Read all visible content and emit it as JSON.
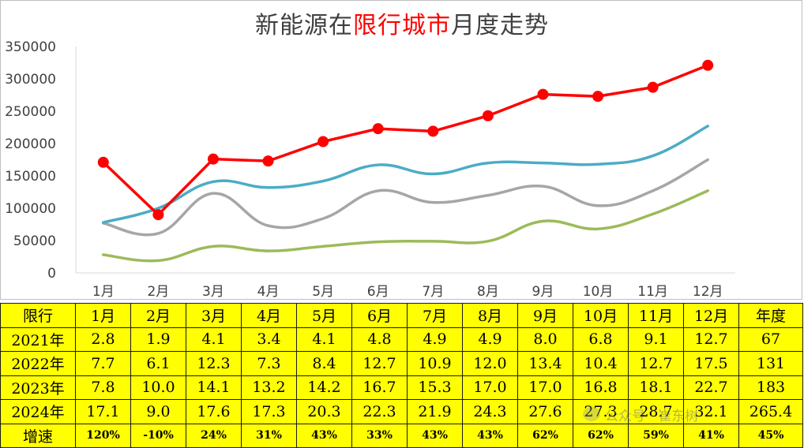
{
  "title": {
    "prefix": "新能源在",
    "highlight": "限行城市",
    "suffix": "月度走势"
  },
  "colors": {
    "series_2021": "#9bbb59",
    "series_2022": "#a6a6a6",
    "series_2023": "#4bacc6",
    "series_2024": "#ff0000",
    "table_bg": "#ffff00"
  },
  "chart_data": {
    "type": "line",
    "categories": [
      "1月",
      "2月",
      "3月",
      "4月",
      "5月",
      "6月",
      "7月",
      "8月",
      "9月",
      "10月",
      "11月",
      "12月"
    ],
    "ylim": [
      0,
      350000
    ],
    "yticks": [
      "0",
      "50000",
      "100000",
      "150000",
      "200000",
      "250000",
      "300000",
      "350000"
    ],
    "grid": false,
    "series": [
      {
        "name": "2021年",
        "color": "#9bbb59",
        "smooth": true,
        "markers": false,
        "values": [
          28000,
          19000,
          41000,
          34000,
          41000,
          48000,
          49000,
          49000,
          80000,
          68000,
          91000,
          127000
        ]
      },
      {
        "name": "2022年",
        "color": "#a6a6a6",
        "smooth": true,
        "markers": false,
        "values": [
          77000,
          61000,
          123000,
          73000,
          84000,
          127000,
          109000,
          120000,
          134000,
          104000,
          127000,
          175000
        ]
      },
      {
        "name": "2023年",
        "color": "#4bacc6",
        "smooth": true,
        "markers": false,
        "values": [
          78000,
          100000,
          141000,
          132000,
          142000,
          167000,
          153000,
          170000,
          170000,
          168000,
          181000,
          227000
        ]
      },
      {
        "name": "2024年",
        "color": "#ff0000",
        "smooth": false,
        "markers": true,
        "values": [
          171000,
          90000,
          176000,
          173000,
          203000,
          223000,
          219000,
          243000,
          276000,
          273000,
          287000,
          321000
        ]
      }
    ]
  },
  "table": {
    "header": [
      "限行",
      "1月",
      "2月",
      "3月",
      "4月",
      "5月",
      "6月",
      "7月",
      "8月",
      "9月",
      "10月",
      "11月",
      "12月",
      "年度"
    ],
    "rows": [
      [
        "2021年",
        "2.8",
        "1.9",
        "4.1",
        "3.4",
        "4.1",
        "4.8",
        "4.9",
        "4.9",
        "8.0",
        "6.8",
        "9.1",
        "12.7",
        "67"
      ],
      [
        "2022年",
        "7.7",
        "6.1",
        "12.3",
        "7.3",
        "8.4",
        "12.7",
        "10.9",
        "12.0",
        "13.4",
        "10.4",
        "12.7",
        "17.5",
        "131"
      ],
      [
        "2023年",
        "7.8",
        "10.0",
        "14.1",
        "13.2",
        "14.2",
        "16.7",
        "15.3",
        "17.0",
        "17.0",
        "16.8",
        "18.1",
        "22.7",
        "183"
      ],
      [
        "2024年",
        "17.1",
        "9.0",
        "17.6",
        "17.3",
        "20.3",
        "22.3",
        "21.9",
        "24.3",
        "27.6",
        "27.3",
        "28.7",
        "32.1",
        "265.4"
      ],
      [
        "增速",
        "120%",
        "-10%",
        "24%",
        "31%",
        "43%",
        "33%",
        "43%",
        "43%",
        "62%",
        "62%",
        "59%",
        "41%",
        "45%"
      ]
    ]
  },
  "watermark": {
    "text": "公众号 · 崔东树",
    "icon": "wechat-icon"
  }
}
